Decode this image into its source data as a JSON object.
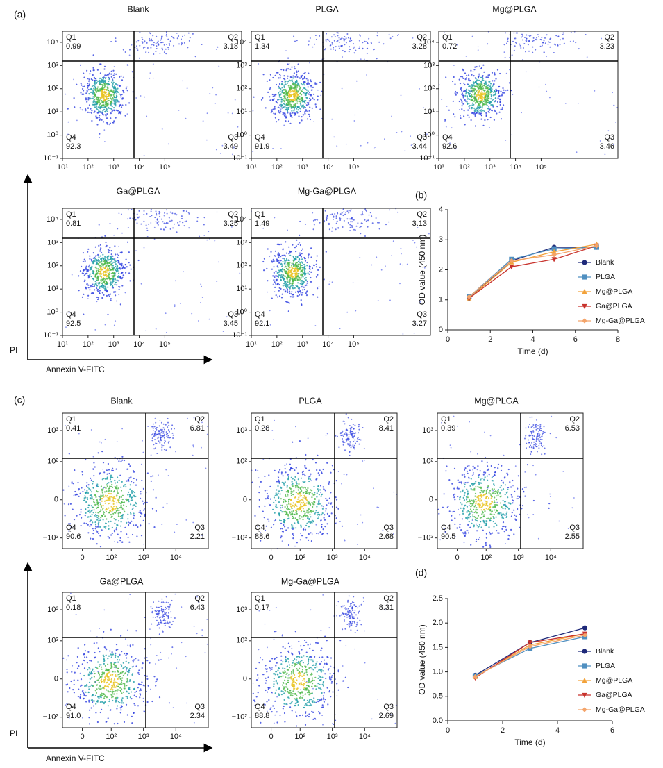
{
  "chart_data": [
    {
      "type": "flow",
      "label": "(a)",
      "scale": "log",
      "x_label": "Annexin V-FITC",
      "y_label": "PI",
      "xlim": [
        10,
        100000000
      ],
      "ylim": [
        0.1,
        30000
      ],
      "xticks": [
        {
          "value": 10,
          "label": "10¹"
        },
        {
          "value": 100,
          "label": "10²"
        },
        {
          "value": 1000,
          "label": "10³"
        },
        {
          "value": 10000,
          "label": "10⁴"
        },
        {
          "value": 100000,
          "label": "10⁵"
        }
      ],
      "yticks": [
        {
          "value": 0.1,
          "label": "10⁻¹"
        },
        {
          "value": 1,
          "label": "10⁰"
        },
        {
          "value": 10,
          "label": "10¹"
        },
        {
          "value": 100,
          "label": "10²"
        },
        {
          "value": 1000,
          "label": "10³"
        },
        {
          "value": 10000,
          "label": "10⁴"
        }
      ],
      "quadrant_names": [
        "Q1",
        "Q2",
        "Q3",
        "Q4"
      ],
      "plots": [
        {
          "title": "Blank",
          "values": [
            0.99,
            3.18,
            3.49,
            92.3
          ]
        },
        {
          "title": "PLGA",
          "values": [
            1.34,
            3.28,
            3.44,
            91.9
          ]
        },
        {
          "title": "Mg@PLGA",
          "values": [
            0.72,
            3.23,
            3.46,
            92.6
          ]
        },
        {
          "title": "Ga@PLGA",
          "values": [
            0.81,
            3.25,
            3.45,
            92.5
          ]
        },
        {
          "title": "Mg-Ga@PLGA",
          "values": [
            1.49,
            3.13,
            3.27,
            92.1
          ]
        }
      ]
    },
    {
      "type": "line",
      "label": "(b)",
      "x_label": "Time (d)",
      "y_label": "OD value (450 nm)",
      "x": [
        1,
        3,
        5,
        7
      ],
      "xlim": [
        0,
        8
      ],
      "xticks": [
        0,
        2,
        4,
        6,
        8
      ],
      "ylim": [
        0,
        4
      ],
      "yticks": [
        0,
        1,
        2,
        3,
        4
      ],
      "series": [
        {
          "name": "Blank",
          "color": "#1f2a7a",
          "marker": "circle",
          "values": [
            1.05,
            2.3,
            2.75,
            2.75
          ]
        },
        {
          "name": "PLGA",
          "color": "#4f8fc0",
          "marker": "square",
          "values": [
            1.1,
            2.35,
            2.7,
            2.75
          ]
        },
        {
          "name": "Mg@PLGA",
          "color": "#f2a23a",
          "marker": "triangle-up",
          "values": [
            1.05,
            2.25,
            2.6,
            2.85
          ]
        },
        {
          "name": "Ga@PLGA",
          "color": "#c8322c",
          "marker": "triangle-down",
          "values": [
            1.05,
            2.1,
            2.35,
            2.8
          ]
        },
        {
          "name": "Mg-Ga@PLGA",
          "color": "#f4a46a",
          "marker": "diamond",
          "values": [
            1.1,
            2.3,
            2.5,
            2.8
          ]
        }
      ]
    },
    {
      "type": "flow",
      "label": "(c)",
      "scale": "biexponential",
      "x_label": "Annexin V-FITC",
      "y_label": "PI",
      "xlim": [
        -50,
        100000
      ],
      "ylim": [
        -220,
        3600
      ],
      "xticks": [
        0,
        {
          "value": 100,
          "label": "10²"
        },
        {
          "value": 1000,
          "label": "10³"
        },
        {
          "value": 10000,
          "label": "10⁴"
        }
      ],
      "yticks": [
        {
          "value": -100,
          "label": "−10²"
        },
        0,
        {
          "value": 100,
          "label": "10²"
        },
        {
          "value": 1000,
          "label": "10³"
        }
      ],
      "quadrant_names": [
        "Q1",
        "Q2",
        "Q3",
        "Q4"
      ],
      "plots": [
        {
          "title": "Blank",
          "values": [
            0.41,
            6.81,
            2.21,
            90.6
          ]
        },
        {
          "title": "PLGA",
          "values": [
            0.28,
            8.41,
            2.68,
            88.6
          ]
        },
        {
          "title": "Mg@PLGA",
          "values": [
            0.39,
            6.53,
            2.55,
            90.5
          ]
        },
        {
          "title": "Ga@PLGA",
          "values": [
            0.18,
            6.43,
            2.34,
            91
          ],
          "value_labels": [
            "0.18",
            "6.43",
            "2.34",
            "91.0"
          ]
        },
        {
          "title": "Mg-Ga@PLGA",
          "values": [
            0.17,
            8.31,
            2.69,
            88.8
          ]
        }
      ]
    },
    {
      "type": "line",
      "label": "(d)",
      "x_label": "Time (d)",
      "y_label": "OD value (450 nm)",
      "x": [
        1,
        3,
        5
      ],
      "xlim": [
        0,
        6
      ],
      "xticks": [
        0,
        2,
        4,
        6
      ],
      "ylim": [
        0,
        2.5
      ],
      "yticks": [
        {
          "value": 0,
          "label": "0.0"
        },
        0.5,
        {
          "value": 1,
          "label": "1.0"
        },
        1.5,
        {
          "value": 2,
          "label": "2.0"
        },
        2.5
      ],
      "series": [
        {
          "name": "Blank",
          "color": "#1f2a7a",
          "marker": "circle",
          "values": [
            0.93,
            1.6,
            1.9
          ]
        },
        {
          "name": "PLGA",
          "color": "#4f8fc0",
          "marker": "square",
          "values": [
            0.92,
            1.48,
            1.72
          ]
        },
        {
          "name": "Mg@PLGA",
          "color": "#f2a23a",
          "marker": "triangle-up",
          "values": [
            0.9,
            1.55,
            1.78
          ]
        },
        {
          "name": "Ga@PLGA",
          "color": "#c8322c",
          "marker": "triangle-down",
          "values": [
            0.88,
            1.6,
            1.78
          ]
        },
        {
          "name": "Mg-Ga@PLGA",
          "color": "#f4a46a",
          "marker": "diamond",
          "values": [
            0.9,
            1.52,
            1.75
          ]
        }
      ]
    }
  ]
}
